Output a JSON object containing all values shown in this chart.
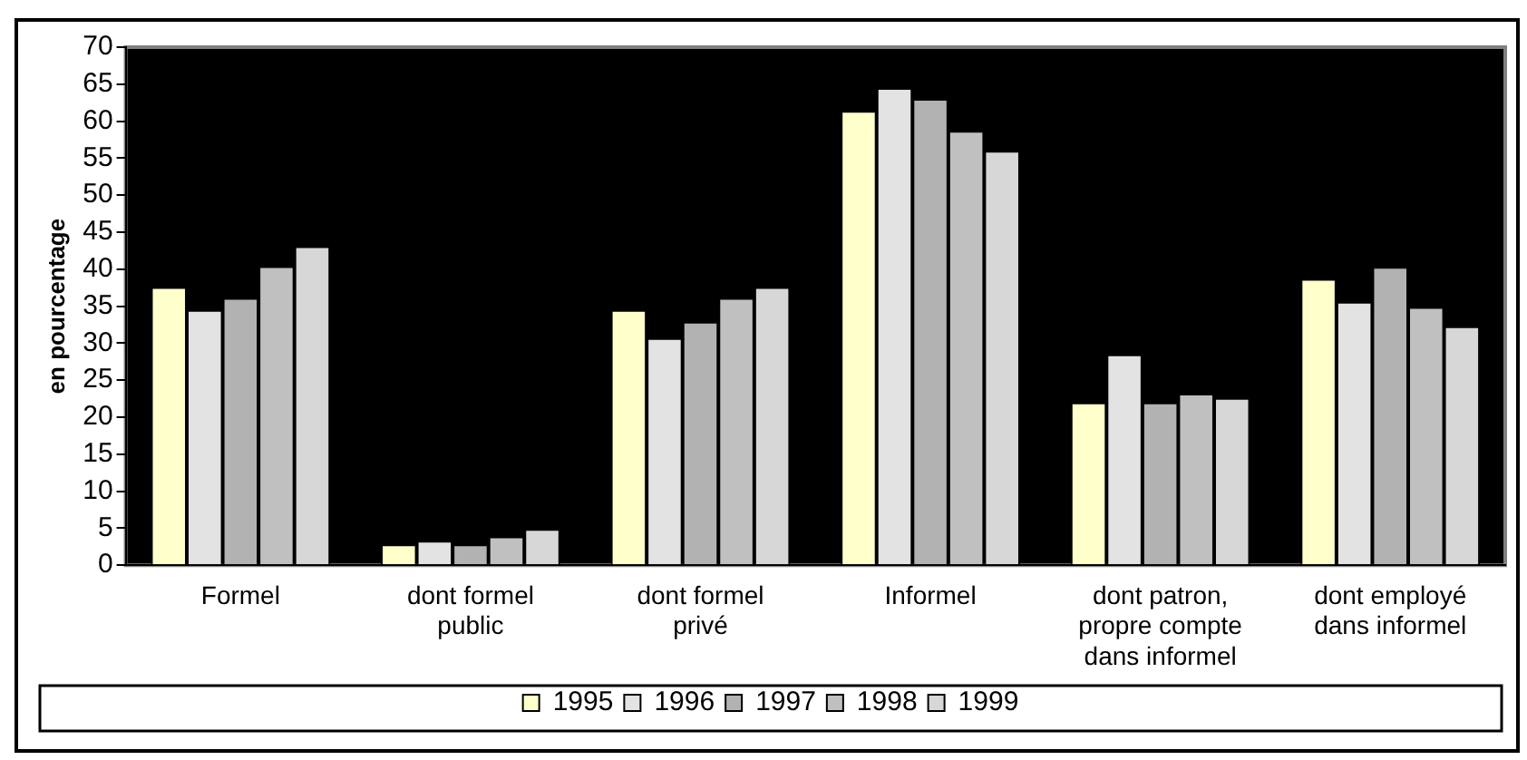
{
  "chart_data": {
    "type": "bar",
    "ylabel": "en pourcentage",
    "categories": [
      "Formel",
      "dont formel public",
      "dont formel privé",
      "Informel",
      "dont patron, propre compte dans informel",
      "dont employé dans informel"
    ],
    "series": [
      {
        "name": "1995",
        "color": "#ffffcc",
        "values": [
          37.6,
          2.8,
          34.5,
          61.4,
          22.0,
          38.7
        ]
      },
      {
        "name": "1996",
        "color": "#e3e3e3",
        "values": [
          34.5,
          3.3,
          30.7,
          64.5,
          28.5,
          35.6
        ]
      },
      {
        "name": "1997",
        "color": "#b2b2b2",
        "values": [
          36.1,
          2.8,
          32.9,
          63.0,
          22.0,
          40.3
        ]
      },
      {
        "name": "1998",
        "color": "#c0c0c0",
        "values": [
          40.4,
          3.9,
          36.1,
          58.7,
          23.2,
          34.9
        ]
      },
      {
        "name": "1999",
        "color": "#d7d7d7",
        "values": [
          43.1,
          4.9,
          37.6,
          56.0,
          22.6,
          32.3
        ]
      }
    ],
    "ylim": [
      0,
      70
    ],
    "yticks": [
      0,
      5,
      10,
      15,
      20,
      25,
      30,
      35,
      40,
      45,
      50,
      55,
      60,
      65,
      70
    ],
    "grid": false,
    "legend": "bottom"
  }
}
